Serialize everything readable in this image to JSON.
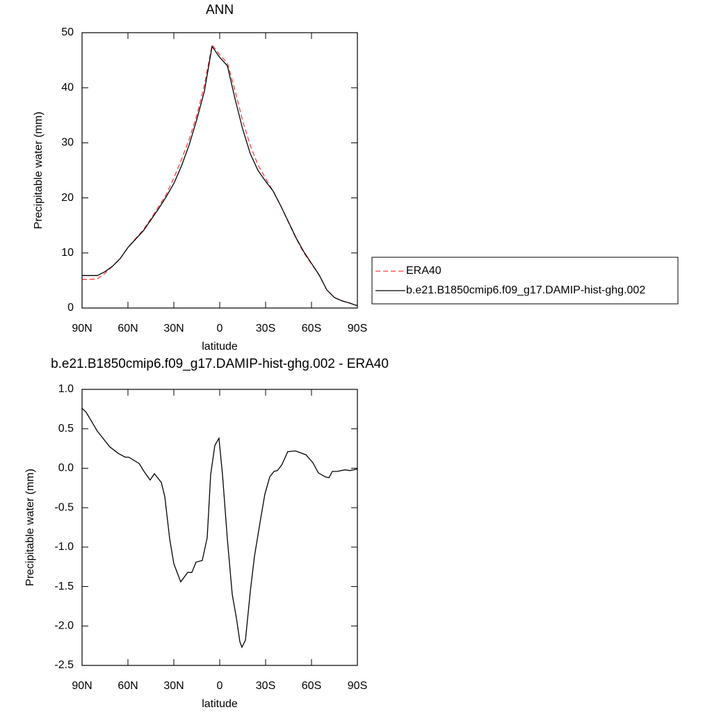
{
  "chart_data": [
    {
      "type": "line",
      "title": "ANN",
      "x_label": "latitude",
      "y_label": "Precipitable water (mm)",
      "x": [
        90,
        85,
        80,
        75,
        70,
        65,
        60,
        55,
        50,
        45,
        40,
        35,
        30,
        25,
        20,
        15,
        10,
        5,
        0,
        -5,
        -10,
        -15,
        -20,
        -25,
        -30,
        -35,
        -40,
        -45,
        -50,
        -55,
        -60,
        -65,
        -70,
        -75,
        -80,
        -85,
        -90
      ],
      "series": [
        {
          "name": "ERA40",
          "color": "#ff3b3b",
          "dash": true,
          "values": [
            5.2,
            5.2,
            5.3,
            6.3,
            7.6,
            9.0,
            11.0,
            12.6,
            14.2,
            16.2,
            18.4,
            20.6,
            23.6,
            27.0,
            30.6,
            35.0,
            40.5,
            47.8,
            46.0,
            44.5,
            39.5,
            34.0,
            29.5,
            26.0,
            23.5,
            21.2,
            18.5,
            15.5,
            12.6,
            10.0,
            8.0,
            6.0,
            3.3,
            1.9,
            1.3,
            0.9,
            0.4
          ]
        },
        {
          "name": "b.e21.B1850cmip6.f09_g17.DAMIP-hist-ghg.002",
          "color": "#000000",
          "dash": false,
          "values": [
            5.9,
            5.9,
            5.9,
            6.6,
            7.6,
            9.0,
            11.0,
            12.5,
            14.0,
            16.0,
            18.0,
            20.2,
            22.6,
            25.8,
            29.6,
            34.2,
            39.4,
            47.5,
            45.5,
            44.0,
            38.0,
            32.5,
            28.0,
            25.0,
            23.0,
            21.2,
            18.5,
            15.6,
            12.7,
            10.2,
            8.1,
            6.0,
            3.3,
            1.9,
            1.3,
            0.9,
            0.4
          ]
        }
      ],
      "xlim": [
        90,
        -90
      ],
      "xticks": [
        {
          "value": 90,
          "label": "90N"
        },
        {
          "value": 60,
          "label": "60N"
        },
        {
          "value": 30,
          "label": "30N"
        },
        0,
        {
          "value": -30,
          "label": "30S"
        },
        {
          "value": -60,
          "label": "60S"
        },
        {
          "value": -90,
          "label": "90S"
        }
      ],
      "ylim": [
        0,
        50
      ],
      "yticks": [
        0,
        10,
        20,
        30,
        40,
        50
      ]
    },
    {
      "type": "line",
      "title": "b.e21.B1850cmip6.f09_g17.DAMIP-hist-ghg.002 - ERA40",
      "x_label": "latitude",
      "y_label": "Precipitable water (mm)",
      "x": [
        90,
        87.3,
        80,
        71.8,
        66.4,
        61.8,
        59.5,
        52.7,
        49.5,
        45.5,
        42.7,
        38.2,
        35.9,
        32.7,
        30,
        25.5,
        20.9,
        18.2,
        15.5,
        11.4,
        8.2,
        5.9,
        3.2,
        0.5,
        -1.8,
        -5,
        -8.2,
        -10.9,
        -13.2,
        -14.5,
        -16.8,
        -20,
        -22.7,
        -26.4,
        -29.5,
        -32.7,
        -35.5,
        -37.7,
        -40.5,
        -44.5,
        -49.5,
        -56.4,
        -60.9,
        -64.5,
        -69.1,
        -71.4,
        -73.6,
        -76.8,
        -81.8,
        -85,
        -90
      ],
      "values": [
        0.76,
        0.71,
        0.47,
        0.27,
        0.19,
        0.14,
        0.14,
        0.06,
        -0.04,
        -0.15,
        -0.07,
        -0.18,
        -0.36,
        -0.9,
        -1.21,
        -1.44,
        -1.32,
        -1.32,
        -1.19,
        -1.17,
        -0.88,
        -0.08,
        0.29,
        0.38,
        -0.08,
        -0.9,
        -1.6,
        -1.9,
        -2.2,
        -2.27,
        -2.18,
        -1.56,
        -1.12,
        -0.68,
        -0.33,
        -0.11,
        -0.04,
        -0.03,
        0.04,
        0.21,
        0.22,
        0.17,
        0.07,
        -0.06,
        -0.11,
        -0.12,
        -0.04,
        -0.04,
        -0.02,
        -0.03,
        -0.01
      ],
      "color": "#000000",
      "xlim": [
        90,
        -90
      ],
      "xticks": [
        {
          "value": 90,
          "label": "90N"
        },
        {
          "value": 60,
          "label": "60N"
        },
        {
          "value": 30,
          "label": "30N"
        },
        0,
        {
          "value": -30,
          "label": "30S"
        },
        {
          "value": -60,
          "label": "60S"
        },
        {
          "value": -90,
          "label": "90S"
        }
      ],
      "ylim": [
        -2.5,
        1.0
      ],
      "yticks": [
        {
          "value": -2.5,
          "label": "-2.5"
        },
        {
          "value": -2,
          "label": "-2.0"
        },
        -1.5,
        {
          "value": -1,
          "label": "-1.0"
        },
        -0.5,
        {
          "value": 0,
          "label": "0.0"
        },
        0.5,
        {
          "value": 1,
          "label": "1.0"
        }
      ]
    }
  ]
}
